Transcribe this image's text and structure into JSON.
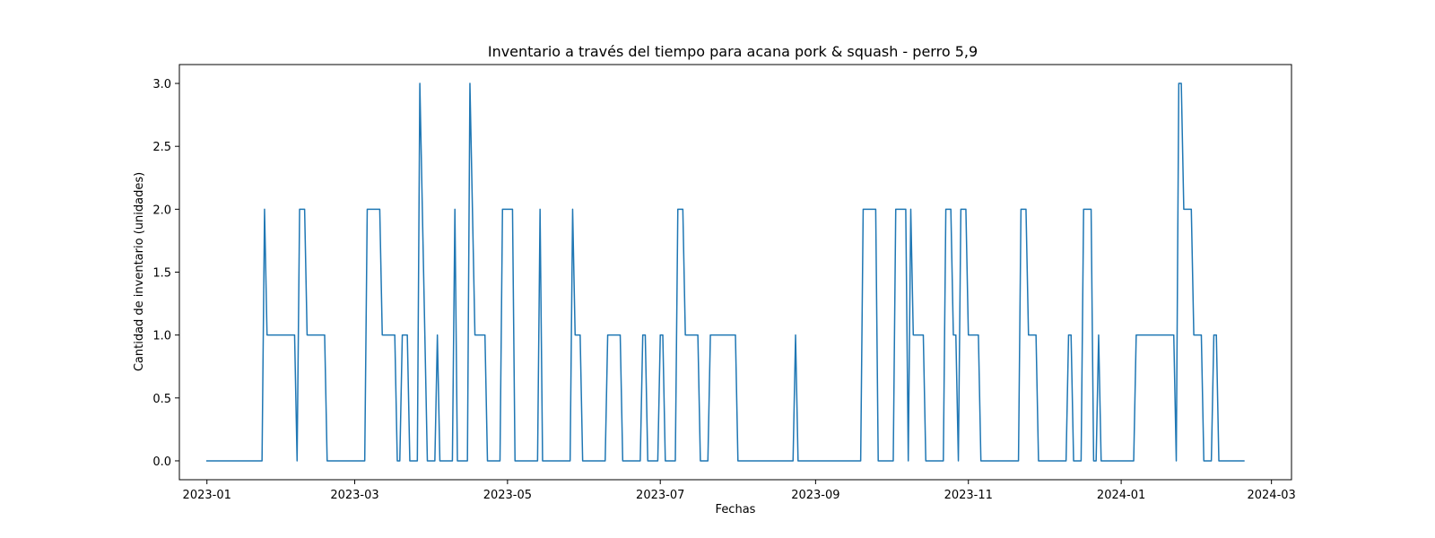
{
  "chart_data": {
    "type": "line",
    "title": "Inventario a través del tiempo para acana pork & squash - perro 5,9",
    "xlabel": "Fechas",
    "ylabel": "Cantidad de inventario (unidades)",
    "ylim": [
      -0.15,
      3.15
    ],
    "xlim": [
      "2022-12-21",
      "2024-03-09"
    ],
    "x_ticks": [
      "2023-01-01",
      "2023-03-01",
      "2023-05-01",
      "2023-07-01",
      "2023-09-01",
      "2023-11-01",
      "2024-01-01",
      "2024-03-01"
    ],
    "x_tick_labels": [
      "2023-01",
      "2023-03",
      "2023-05",
      "2023-07",
      "2023-09",
      "2023-11",
      "2024-01",
      "2024-03"
    ],
    "y_ticks": [
      0.0,
      0.5,
      1.0,
      1.5,
      2.0,
      2.5,
      3.0
    ],
    "y_tick_labels": [
      "0.0",
      "0.5",
      "1.0",
      "1.5",
      "2.0",
      "2.5",
      "3.0"
    ],
    "grid": false,
    "series": [
      {
        "color": "#1f77b4",
        "points": [
          [
            "2023-01-01",
            0
          ],
          [
            "2023-01-23",
            0
          ],
          [
            "2023-01-24",
            2
          ],
          [
            "2023-01-25",
            1
          ],
          [
            "2023-02-05",
            1
          ],
          [
            "2023-02-06",
            0
          ],
          [
            "2023-02-07",
            2
          ],
          [
            "2023-02-09",
            2
          ],
          [
            "2023-02-10",
            1
          ],
          [
            "2023-02-17",
            1
          ],
          [
            "2023-02-18",
            0
          ],
          [
            "2023-03-05",
            0
          ],
          [
            "2023-03-06",
            2
          ],
          [
            "2023-03-11",
            2
          ],
          [
            "2023-03-12",
            1
          ],
          [
            "2023-03-17",
            1
          ],
          [
            "2023-03-18",
            0
          ],
          [
            "2023-03-19",
            0
          ],
          [
            "2023-03-20",
            1
          ],
          [
            "2023-03-22",
            1
          ],
          [
            "2023-03-23",
            0
          ],
          [
            "2023-03-26",
            0
          ],
          [
            "2023-03-27",
            3
          ],
          [
            "2023-03-30",
            0
          ],
          [
            "2023-04-02",
            0
          ],
          [
            "2023-04-03",
            1
          ],
          [
            "2023-04-04",
            0
          ],
          [
            "2023-04-09",
            0
          ],
          [
            "2023-04-10",
            2
          ],
          [
            "2023-04-11",
            0
          ],
          [
            "2023-04-15",
            0
          ],
          [
            "2023-04-16",
            3
          ],
          [
            "2023-04-18",
            1
          ],
          [
            "2023-04-22",
            1
          ],
          [
            "2023-04-23",
            0
          ],
          [
            "2023-04-28",
            0
          ],
          [
            "2023-04-29",
            2
          ],
          [
            "2023-05-03",
            2
          ],
          [
            "2023-05-04",
            0
          ],
          [
            "2023-05-13",
            0
          ],
          [
            "2023-05-14",
            2
          ],
          [
            "2023-05-15",
            0
          ],
          [
            "2023-05-26",
            0
          ],
          [
            "2023-05-27",
            2
          ],
          [
            "2023-05-28",
            1
          ],
          [
            "2023-05-30",
            1
          ],
          [
            "2023-05-31",
            0
          ],
          [
            "2023-06-09",
            0
          ],
          [
            "2023-06-10",
            1
          ],
          [
            "2023-06-15",
            1
          ],
          [
            "2023-06-16",
            0
          ],
          [
            "2023-06-23",
            0
          ],
          [
            "2023-06-24",
            1
          ],
          [
            "2023-06-25",
            1
          ],
          [
            "2023-06-26",
            0
          ],
          [
            "2023-06-30",
            0
          ],
          [
            "2023-07-01",
            1
          ],
          [
            "2023-07-02",
            1
          ],
          [
            "2023-07-03",
            0
          ],
          [
            "2023-07-07",
            0
          ],
          [
            "2023-07-08",
            2
          ],
          [
            "2023-07-10",
            2
          ],
          [
            "2023-07-11",
            1
          ],
          [
            "2023-07-16",
            1
          ],
          [
            "2023-07-17",
            0
          ],
          [
            "2023-07-20",
            0
          ],
          [
            "2023-07-21",
            1
          ],
          [
            "2023-07-31",
            1
          ],
          [
            "2023-08-01",
            0
          ],
          [
            "2023-08-23",
            0
          ],
          [
            "2023-08-24",
            1
          ],
          [
            "2023-08-25",
            0
          ],
          [
            "2023-09-19",
            0
          ],
          [
            "2023-09-20",
            2
          ],
          [
            "2023-09-25",
            2
          ],
          [
            "2023-09-26",
            0
          ],
          [
            "2023-10-02",
            0
          ],
          [
            "2023-10-03",
            2
          ],
          [
            "2023-10-07",
            2
          ],
          [
            "2023-10-08",
            0
          ],
          [
            "2023-10-09",
            2
          ],
          [
            "2023-10-10",
            1
          ],
          [
            "2023-10-14",
            1
          ],
          [
            "2023-10-15",
            0
          ],
          [
            "2023-10-22",
            0
          ],
          [
            "2023-10-23",
            2
          ],
          [
            "2023-10-25",
            2
          ],
          [
            "2023-10-26",
            1
          ],
          [
            "2023-10-27",
            1
          ],
          [
            "2023-10-28",
            0
          ],
          [
            "2023-10-29",
            2
          ],
          [
            "2023-10-31",
            2
          ],
          [
            "2023-11-01",
            1
          ],
          [
            "2023-11-05",
            1
          ],
          [
            "2023-11-06",
            0
          ],
          [
            "2023-11-21",
            0
          ],
          [
            "2023-11-22",
            2
          ],
          [
            "2023-11-24",
            2
          ],
          [
            "2023-11-25",
            1
          ],
          [
            "2023-11-28",
            1
          ],
          [
            "2023-11-29",
            0
          ],
          [
            "2023-12-10",
            0
          ],
          [
            "2023-12-11",
            1
          ],
          [
            "2023-12-12",
            1
          ],
          [
            "2023-12-13",
            0
          ],
          [
            "2023-12-16",
            0
          ],
          [
            "2023-12-17",
            2
          ],
          [
            "2023-12-20",
            2
          ],
          [
            "2023-12-21",
            0
          ],
          [
            "2023-12-22",
            0
          ],
          [
            "2023-12-23",
            1
          ],
          [
            "2023-12-24",
            0
          ],
          [
            "2024-01-06",
            0
          ],
          [
            "2024-01-07",
            1
          ],
          [
            "2024-01-22",
            1
          ],
          [
            "2024-01-23",
            0
          ],
          [
            "2024-01-24",
            3
          ],
          [
            "2024-01-25",
            3
          ],
          [
            "2024-01-26",
            2
          ],
          [
            "2024-01-29",
            2
          ],
          [
            "2024-01-30",
            1
          ],
          [
            "2024-02-02",
            1
          ],
          [
            "2024-02-03",
            0
          ],
          [
            "2024-02-06",
            0
          ],
          [
            "2024-02-07",
            1
          ],
          [
            "2024-02-08",
            1
          ],
          [
            "2024-02-09",
            0
          ],
          [
            "2024-02-19",
            0
          ]
        ]
      }
    ]
  }
}
